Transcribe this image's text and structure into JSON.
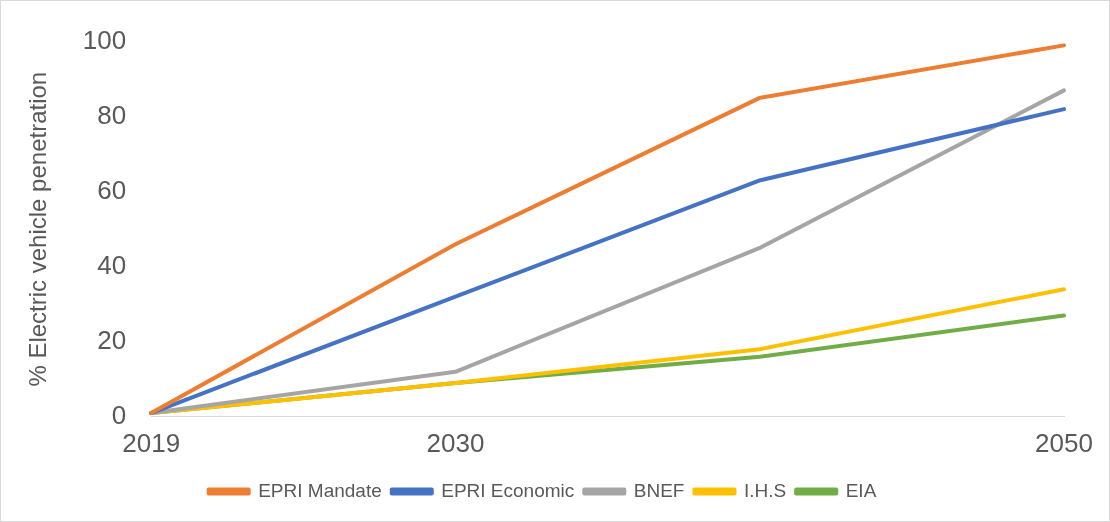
{
  "chart_data": {
    "type": "line",
    "ylabel": "% Electric vehicle penetration",
    "categories": [
      "2019",
      "2030",
      null,
      "2050"
    ],
    "series": [
      {
        "name": "EPRI Mandate",
        "color": "#ed7d31",
        "values": [
          1,
          46,
          85,
          99
        ]
      },
      {
        "name": "EPRI Economic",
        "color": "#4472c4",
        "values": [
          1,
          32,
          63,
          82
        ]
      },
      {
        "name": "BNEF",
        "color": "#a5a5a5",
        "values": [
          1,
          12,
          45,
          87
        ]
      },
      {
        "name": "I.H.S",
        "color": "#ffc000",
        "values": [
          1,
          9,
          18,
          34
        ]
      },
      {
        "name": "EIA",
        "color": "#70ad47",
        "values": [
          1,
          9,
          16,
          27
        ]
      }
    ],
    "ylim": [
      0,
      100
    ],
    "yticks": [
      0,
      20,
      40,
      60,
      80,
      100
    ],
    "grid": false,
    "legend": "bottom",
    "marker": "none",
    "line_style": "solid"
  }
}
